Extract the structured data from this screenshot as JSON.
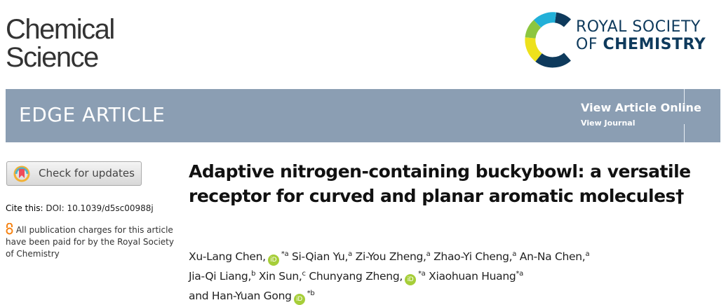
{
  "journal": {
    "line1": "Chemical",
    "line2": "Science"
  },
  "publisher": {
    "line1": "ROYAL SOCIETY",
    "line2_light": "OF",
    "line2_bold": "CHEMISTRY"
  },
  "banner": {
    "type": "EDGE ARTICLE",
    "view_online": "View Article Online",
    "view_journal": "View Journal"
  },
  "sidebar": {
    "check_updates": "Check for updates",
    "cite_label": "Cite this:",
    "doi": "DOI: 10.1039/d5sc00988j",
    "open_access": "All publication charges for this article have been paid for by the Royal Society of Chemistry"
  },
  "article": {
    "title": "Adaptive nitrogen-containing buckybowl: a versatile receptor for curved and planar aromatic molecules†"
  },
  "authors": [
    {
      "name": "Xu-Lang Chen,",
      "orcid": true,
      "sup": "*a"
    },
    {
      "name": "Si-Qian Yu,",
      "orcid": false,
      "sup": "a"
    },
    {
      "name": "Zi-You Zheng,",
      "orcid": false,
      "sup": "a"
    },
    {
      "name": "Zhao-Yi Cheng,",
      "orcid": false,
      "sup": "a"
    },
    {
      "name": "An-Na Chen,",
      "orcid": false,
      "sup": "a"
    },
    {
      "name": "Jia-Qi Liang,",
      "orcid": false,
      "sup": "b"
    },
    {
      "name": "Xin Sun,",
      "orcid": false,
      "sup": "c"
    },
    {
      "name": "Chunyang Zheng,",
      "orcid": true,
      "sup": "*a"
    },
    {
      "name": "Xiaohuan Huang",
      "orcid": false,
      "sup": "*a"
    },
    {
      "name": "and Han-Yuan Gong",
      "orcid": true,
      "sup": "*b"
    }
  ],
  "orcid_label": "iD",
  "colors": {
    "banner": "#8b9eb3",
    "rsc_navy": "#0e3a5c",
    "orcid": "#a6ce39",
    "open_access": "#f68212"
  }
}
